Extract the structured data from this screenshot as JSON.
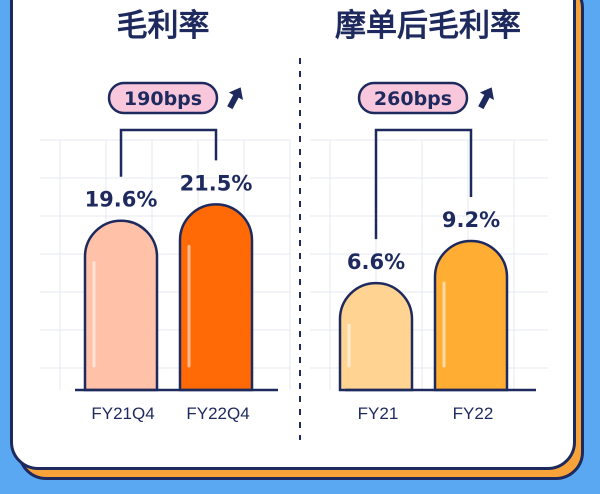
{
  "colors": {
    "navy": "#1e2a5e",
    "grid": "#e4e8f0",
    "page_bg": "#5aa7f2",
    "card_accent": "#f7a33a",
    "badge_fill": "#f8c7dc"
  },
  "chart_data": [
    {
      "type": "bar",
      "title": "毛利率",
      "categories": [
        "FY21Q4",
        "FY22Q4"
      ],
      "values": [
        19.6,
        21.5
      ],
      "value_labels": [
        "19.6%",
        "21.5%"
      ],
      "bar_colors": [
        "#ffc2a8",
        "#ff6a06"
      ],
      "change_badge": "190bps",
      "change_icon": "arrow-up-icon",
      "ylim": [
        0,
        22
      ],
      "grid": true
    },
    {
      "type": "bar",
      "title": "摩单后毛利率",
      "categories": [
        "FY21",
        "FY22"
      ],
      "values": [
        6.6,
        9.2
      ],
      "value_labels": [
        "6.6%",
        "9.2%"
      ],
      "bar_colors": [
        "#ffd493",
        "#ffad33"
      ],
      "change_badge": "260bps",
      "change_icon": "arrow-up-icon",
      "ylim": [
        0,
        10
      ],
      "grid": true
    }
  ]
}
